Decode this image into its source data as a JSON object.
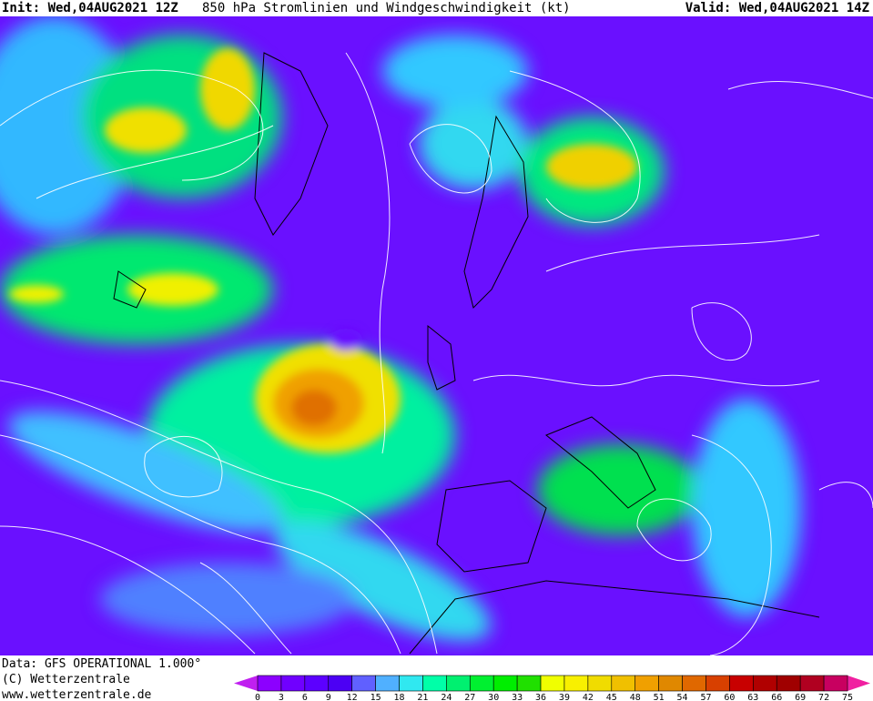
{
  "header": {
    "init": "Init: Wed,04AUG2021 12Z",
    "title": "850 hPa Stromlinien und Windgeschwindigkeit (kt)",
    "valid": "Valid: Wed,04AUG2021 14Z"
  },
  "footer": {
    "data_source": "Data: GFS OPERATIONAL 1.000°",
    "copyright": "(C) Wetterzentrale",
    "website": "www.wetterzentrale.de"
  },
  "colorbar": {
    "unit": "kt",
    "under_color": "#c020f0",
    "over_color": "#f020a0",
    "ticks": [
      "0",
      "3",
      "6",
      "9",
      "12",
      "15",
      "18",
      "21",
      "24",
      "27",
      "30",
      "33",
      "36",
      "39",
      "42",
      "45",
      "48",
      "51",
      "54",
      "57",
      "60",
      "63",
      "66",
      "69",
      "72",
      "75"
    ],
    "colors": [
      "#8c00ff",
      "#7000ff",
      "#5c00ff",
      "#4c00f4",
      "#6060ff",
      "#50b0ff",
      "#30e8f0",
      "#00ffa8",
      "#00f070",
      "#00f030",
      "#00ee00",
      "#20e000",
      "#f0ff00",
      "#f8f000",
      "#f0dc00",
      "#f0c000",
      "#f0a000",
      "#e08800",
      "#e06800",
      "#d84000",
      "#c80000",
      "#b00000",
      "#a00000",
      "#b00020",
      "#c80060"
    ]
  }
}
